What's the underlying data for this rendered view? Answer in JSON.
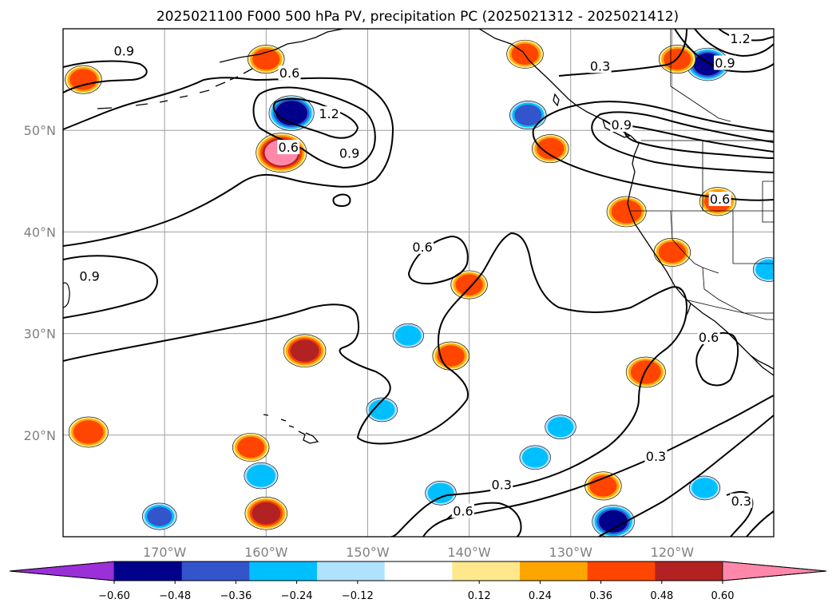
{
  "chart_data": {
    "type": "map-contour",
    "title": "2025021100 F000 500 hPa PV, precipitation PC (2025021312 - 2025021412)",
    "lat_ticks": [
      "50°N",
      "40°N",
      "30°N",
      "20°N"
    ],
    "lon_ticks": [
      "170°W",
      "160°W",
      "150°W",
      "140°W",
      "130°W",
      "120°W"
    ],
    "extent": {
      "lon_min": -180,
      "lon_max": -110,
      "lat_min": 10,
      "lat_max": 60
    },
    "grid": true,
    "pv_contour_labels": [
      {
        "text": "0.9",
        "lon": -174,
        "lat": 57.7
      },
      {
        "text": "0.6",
        "lon": -157.7,
        "lat": 55.5
      },
      {
        "text": "1.2",
        "lon": -153.8,
        "lat": 51.5
      },
      {
        "text": "0.9",
        "lon": -151.8,
        "lat": 47.6
      },
      {
        "text": "0.6",
        "lon": -157.8,
        "lat": 48.2
      },
      {
        "text": "0.3",
        "lon": -127.1,
        "lat": 56.2
      },
      {
        "text": "0.9",
        "lon": -125,
        "lat": 50.4
      },
      {
        "text": "1.2",
        "lon": -113.3,
        "lat": 58.9
      },
      {
        "text": "0.9",
        "lon": -114.8,
        "lat": 56.5
      },
      {
        "text": "0.6",
        "lon": -115.3,
        "lat": 43.1
      },
      {
        "text": "0.6",
        "lon": -144.6,
        "lat": 38.4
      },
      {
        "text": "0.9",
        "lon": -177.4,
        "lat": 35.5
      },
      {
        "text": "0.6",
        "lon": -116.4,
        "lat": 29.5
      },
      {
        "text": "0.3",
        "lon": -121.6,
        "lat": 17.8
      },
      {
        "text": "0.3",
        "lon": -136.8,
        "lat": 15.0
      },
      {
        "text": "0.6",
        "lon": -140.6,
        "lat": 12.4
      },
      {
        "text": "0.3",
        "lon": -113.2,
        "lat": 13.4
      }
    ],
    "colorbar": {
      "ticks": [
        "−0.60",
        "−0.48",
        "−0.36",
        "−0.24",
        "−0.12",
        "0.12",
        "0.24",
        "0.36",
        "0.48",
        "0.60"
      ],
      "levels": [
        -0.6,
        -0.48,
        -0.36,
        -0.24,
        -0.12,
        0.12,
        0.24,
        0.36,
        0.48,
        0.6
      ],
      "colors": [
        "#9b30d9",
        "#00008b",
        "#3355cc",
        "#00bfff",
        "#b0e2ff",
        "#ffffff",
        "#ffe88c",
        "#ffa500",
        "#ff4500",
        "#b22222",
        "#ff88aa"
      ],
      "extend": "both"
    },
    "precip_features": [
      {
        "lon": -178.0,
        "lat": 55.0,
        "value": 0.4
      },
      {
        "lon": -160.0,
        "lat": 57.0,
        "value": 0.4
      },
      {
        "lon": -157.5,
        "lat": 51.7,
        "value": -0.55
      },
      {
        "lon": -158.5,
        "lat": 47.8,
        "value": 0.65
      },
      {
        "lon": -134.5,
        "lat": 57.5,
        "value": 0.4
      },
      {
        "lon": -134.2,
        "lat": 51.5,
        "value": -0.4
      },
      {
        "lon": -132.0,
        "lat": 48.2,
        "value": 0.4
      },
      {
        "lon": -124.5,
        "lat": 42.0,
        "value": 0.45
      },
      {
        "lon": -116.5,
        "lat": 56.5,
        "value": -0.5
      },
      {
        "lon": -119.5,
        "lat": 57.0,
        "value": 0.4
      },
      {
        "lon": -115.5,
        "lat": 43.0,
        "value": 0.4
      },
      {
        "lon": -110.5,
        "lat": 36.3,
        "value": -0.3
      },
      {
        "lon": -177.5,
        "lat": 20.3,
        "value": 0.45
      },
      {
        "lon": -161.5,
        "lat": 18.8,
        "value": 0.4
      },
      {
        "lon": -160.5,
        "lat": 16.0,
        "value": -0.35
      },
      {
        "lon": -156.2,
        "lat": 28.3,
        "value": 0.5
      },
      {
        "lon": -160.0,
        "lat": 12.3,
        "value": 0.5
      },
      {
        "lon": -170.5,
        "lat": 12.0,
        "value": -0.36
      },
      {
        "lon": -148.6,
        "lat": 22.5,
        "value": -0.3
      },
      {
        "lon": -146.0,
        "lat": 29.8,
        "value": -0.3
      },
      {
        "lon": -141.8,
        "lat": 27.8,
        "value": 0.4
      },
      {
        "lon": -140.0,
        "lat": 34.8,
        "value": 0.4
      },
      {
        "lon": -122.6,
        "lat": 26.2,
        "value": 0.45
      },
      {
        "lon": -125.8,
        "lat": 11.5,
        "value": -0.5
      },
      {
        "lon": -126.8,
        "lat": 15.0,
        "value": 0.4
      },
      {
        "lon": -133.5,
        "lat": 17.8,
        "value": -0.3
      },
      {
        "lon": -116.8,
        "lat": 14.8,
        "value": -0.3
      },
      {
        "lon": -131.0,
        "lat": 20.8,
        "value": -0.3
      },
      {
        "lon": -142.8,
        "lat": 14.3,
        "value": -0.3
      },
      {
        "lon": -120.0,
        "lat": 38.0,
        "value": 0.4
      }
    ]
  }
}
